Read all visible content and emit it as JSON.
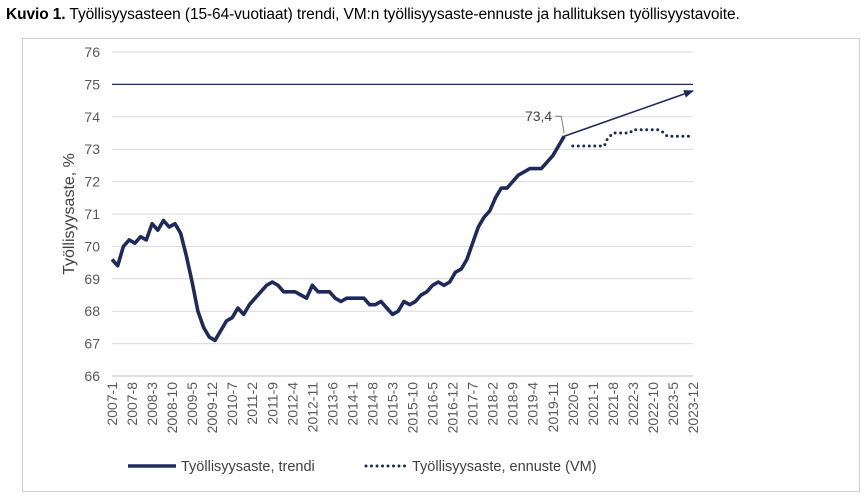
{
  "title_prefix": "Kuvio 1.",
  "title_text": " Työllisyysasteen (15-64-vuotiaat) trendi, VM:n työllisyysaste-ennuste ja hallituksen työllisyystavoite.",
  "chart_data": {
    "type": "line",
    "ylabel": "Työllisyysaste, %",
    "xlabel": "",
    "ylim": [
      66,
      76
    ],
    "yticks": [
      66,
      67,
      68,
      69,
      70,
      71,
      72,
      73,
      74,
      75,
      76
    ],
    "x_tick_labels": [
      "2007-1",
      "2007-8",
      "2008-3",
      "2008-10",
      "2009-5",
      "2009-12",
      "2010-7",
      "2011-2",
      "2011-9",
      "2012-4",
      "2012-11",
      "2013-6",
      "2014-1",
      "2014-8",
      "2015-3",
      "2015-10",
      "2016-5",
      "2016-12",
      "2017-7",
      "2018-2",
      "2018-9",
      "2019-4",
      "2019-11",
      "2020-6",
      "2021-1",
      "2021-8",
      "2022-3",
      "2022-10",
      "2023-5",
      "2023-12"
    ],
    "x_range": [
      "2007-1",
      "2023-12"
    ],
    "grid": "horizontal",
    "legend_position": "bottom",
    "series": [
      {
        "name": "Työllisyysaste, trendi",
        "style": "solid",
        "color": "#1f2a5c",
        "points": [
          [
            "2007-1",
            69.6
          ],
          [
            "2007-3",
            69.4
          ],
          [
            "2007-5",
            70.0
          ],
          [
            "2007-7",
            70.2
          ],
          [
            "2007-9",
            70.1
          ],
          [
            "2007-11",
            70.3
          ],
          [
            "2008-1",
            70.2
          ],
          [
            "2008-3",
            70.7
          ],
          [
            "2008-5",
            70.5
          ],
          [
            "2008-7",
            70.8
          ],
          [
            "2008-9",
            70.6
          ],
          [
            "2008-11",
            70.7
          ],
          [
            "2009-1",
            70.4
          ],
          [
            "2009-3",
            69.7
          ],
          [
            "2009-5",
            68.9
          ],
          [
            "2009-7",
            68.0
          ],
          [
            "2009-9",
            67.5
          ],
          [
            "2009-11",
            67.2
          ],
          [
            "2010-1",
            67.1
          ],
          [
            "2010-3",
            67.4
          ],
          [
            "2010-5",
            67.7
          ],
          [
            "2010-7",
            67.8
          ],
          [
            "2010-9",
            68.1
          ],
          [
            "2010-11",
            67.9
          ],
          [
            "2011-1",
            68.2
          ],
          [
            "2011-3",
            68.4
          ],
          [
            "2011-5",
            68.6
          ],
          [
            "2011-7",
            68.8
          ],
          [
            "2011-9",
            68.9
          ],
          [
            "2011-11",
            68.8
          ],
          [
            "2012-1",
            68.6
          ],
          [
            "2012-3",
            68.6
          ],
          [
            "2012-5",
            68.6
          ],
          [
            "2012-7",
            68.5
          ],
          [
            "2012-9",
            68.4
          ],
          [
            "2012-11",
            68.8
          ],
          [
            "2013-1",
            68.6
          ],
          [
            "2013-3",
            68.6
          ],
          [
            "2013-5",
            68.6
          ],
          [
            "2013-7",
            68.4
          ],
          [
            "2013-9",
            68.3
          ],
          [
            "2013-11",
            68.4
          ],
          [
            "2014-1",
            68.4
          ],
          [
            "2014-3",
            68.4
          ],
          [
            "2014-5",
            68.4
          ],
          [
            "2014-7",
            68.2
          ],
          [
            "2014-9",
            68.2
          ],
          [
            "2014-11",
            68.3
          ],
          [
            "2015-1",
            68.1
          ],
          [
            "2015-3",
            67.9
          ],
          [
            "2015-5",
            68.0
          ],
          [
            "2015-7",
            68.3
          ],
          [
            "2015-9",
            68.2
          ],
          [
            "2015-11",
            68.3
          ],
          [
            "2016-1",
            68.5
          ],
          [
            "2016-3",
            68.6
          ],
          [
            "2016-5",
            68.8
          ],
          [
            "2016-7",
            68.9
          ],
          [
            "2016-9",
            68.8
          ],
          [
            "2016-11",
            68.9
          ],
          [
            "2017-1",
            69.2
          ],
          [
            "2017-3",
            69.3
          ],
          [
            "2017-5",
            69.6
          ],
          [
            "2017-7",
            70.1
          ],
          [
            "2017-9",
            70.6
          ],
          [
            "2017-11",
            70.9
          ],
          [
            "2018-1",
            71.1
          ],
          [
            "2018-3",
            71.5
          ],
          [
            "2018-5",
            71.8
          ],
          [
            "2018-7",
            71.8
          ],
          [
            "2018-9",
            72.0
          ],
          [
            "2018-11",
            72.2
          ],
          [
            "2019-1",
            72.3
          ],
          [
            "2019-3",
            72.4
          ],
          [
            "2019-5",
            72.4
          ],
          [
            "2019-7",
            72.4
          ],
          [
            "2019-9",
            72.6
          ],
          [
            "2019-11",
            72.8
          ],
          [
            "2020-1",
            73.1
          ],
          [
            "2020-3",
            73.4
          ]
        ]
      },
      {
        "name": "Työllisyysaste, ennuste (VM)",
        "style": "dotted",
        "color": "#1f2a5c",
        "points": [
          [
            "2020-6",
            73.1
          ],
          [
            "2021-1",
            73.1
          ],
          [
            "2021-5",
            73.1
          ],
          [
            "2021-6",
            73.3
          ],
          [
            "2021-8",
            73.5
          ],
          [
            "2022-2",
            73.5
          ],
          [
            "2022-3",
            73.6
          ],
          [
            "2022-12",
            73.6
          ],
          [
            "2023-2",
            73.5
          ],
          [
            "2023-3",
            73.4
          ],
          [
            "2023-12",
            73.4
          ]
        ]
      }
    ],
    "reference_line": {
      "y": 75,
      "color": "#1f2a5c"
    },
    "annotations": [
      {
        "type": "label",
        "text": "73,4",
        "x": "2020-3",
        "y": 73.4
      },
      {
        "type": "arrow",
        "from": [
          "2020-3",
          73.4
        ],
        "to": [
          "2023-12",
          74.8
        ]
      }
    ]
  }
}
